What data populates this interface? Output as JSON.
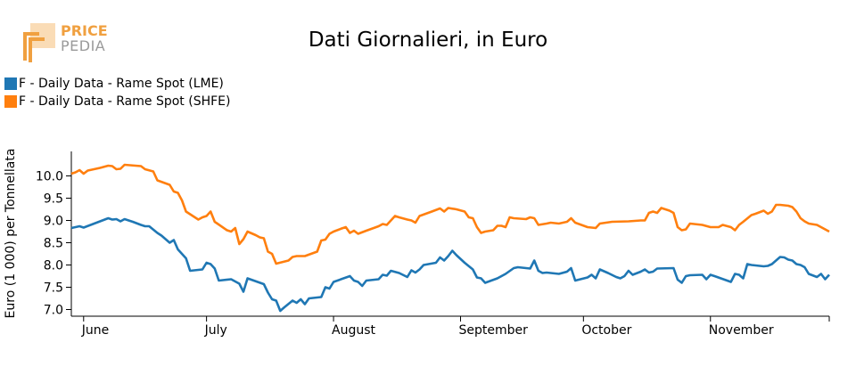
{
  "logo": {
    "line1": "PRICE",
    "line2": "PEDIA"
  },
  "chart_data": {
    "type": "line",
    "title": "Dati Giornalieri, in Euro",
    "xlabel": "",
    "ylabel": "Euro (1 000) per Tonnellata",
    "ylim": [
      6.85,
      10.55
    ],
    "yticks": [
      7.0,
      7.5,
      8.0,
      8.5,
      9.0,
      9.5,
      10.0
    ],
    "ytick_labels": [
      "7.0",
      "7.5",
      "8.0",
      "8.5",
      "9.0",
      "9.5",
      "10.0"
    ],
    "xlim": [
      "2023-05-29",
      "2023-11-30"
    ],
    "xticks": [
      "2023-06-01",
      "2023-07-01",
      "2023-08-01",
      "2023-09-01",
      "2023-10-01",
      "2023-11-01"
    ],
    "xtick_labels": [
      "June",
      "July",
      "August",
      "September",
      "October",
      "November"
    ],
    "legend_position": "top-left",
    "grid": false,
    "series": [
      {
        "name": "F - Daily Data - Rame Spot (LME)",
        "color": "#1f77b4",
        "points": [
          [
            "2023-05-29",
            8.83
          ],
          [
            "2023-05-31",
            8.87
          ],
          [
            "2023-06-01",
            8.84
          ],
          [
            "2023-06-03",
            8.91
          ],
          [
            "2023-06-05",
            8.98
          ],
          [
            "2023-06-07",
            9.05
          ],
          [
            "2023-06-08",
            9.02
          ],
          [
            "2023-06-09",
            9.03
          ],
          [
            "2023-06-10",
            8.98
          ],
          [
            "2023-06-11",
            9.03
          ],
          [
            "2023-06-13",
            8.97
          ],
          [
            "2023-06-15",
            8.9
          ],
          [
            "2023-06-16",
            8.87
          ],
          [
            "2023-06-17",
            8.87
          ],
          [
            "2023-06-19",
            8.72
          ],
          [
            "2023-06-20",
            8.66
          ],
          [
            "2023-06-21",
            8.58
          ],
          [
            "2023-06-22",
            8.5
          ],
          [
            "2023-06-23",
            8.56
          ],
          [
            "2023-06-24",
            8.35
          ],
          [
            "2023-06-26",
            8.15
          ],
          [
            "2023-06-27",
            7.87
          ],
          [
            "2023-06-30",
            7.9
          ],
          [
            "2023-07-01",
            8.05
          ],
          [
            "2023-07-02",
            8.02
          ],
          [
            "2023-07-03",
            7.92
          ],
          [
            "2023-07-04",
            7.65
          ],
          [
            "2023-07-07",
            7.68
          ],
          [
            "2023-07-09",
            7.58
          ],
          [
            "2023-07-10",
            7.4
          ],
          [
            "2023-07-11",
            7.7
          ],
          [
            "2023-07-15",
            7.57
          ],
          [
            "2023-07-16",
            7.38
          ],
          [
            "2023-07-17",
            7.23
          ],
          [
            "2023-07-18",
            7.2
          ],
          [
            "2023-07-19",
            6.97
          ],
          [
            "2023-07-20",
            7.05
          ],
          [
            "2023-07-22",
            7.2
          ],
          [
            "2023-07-23",
            7.15
          ],
          [
            "2023-07-24",
            7.23
          ],
          [
            "2023-07-25",
            7.12
          ],
          [
            "2023-07-26",
            7.25
          ],
          [
            "2023-07-29",
            7.28
          ],
          [
            "2023-07-30",
            7.5
          ],
          [
            "2023-07-31",
            7.47
          ],
          [
            "2023-08-01",
            7.62
          ],
          [
            "2023-08-05",
            7.75
          ],
          [
            "2023-08-06",
            7.65
          ],
          [
            "2023-08-07",
            7.62
          ],
          [
            "2023-08-08",
            7.53
          ],
          [
            "2023-08-09",
            7.65
          ],
          [
            "2023-08-12",
            7.68
          ],
          [
            "2023-08-13",
            7.78
          ],
          [
            "2023-08-14",
            7.76
          ],
          [
            "2023-08-15",
            7.87
          ],
          [
            "2023-08-17",
            7.82
          ],
          [
            "2023-08-19",
            7.73
          ],
          [
            "2023-08-20",
            7.88
          ],
          [
            "2023-08-21",
            7.83
          ],
          [
            "2023-08-22",
            7.9
          ],
          [
            "2023-08-23",
            8.0
          ],
          [
            "2023-08-26",
            8.05
          ],
          [
            "2023-08-27",
            8.17
          ],
          [
            "2023-08-28",
            8.1
          ],
          [
            "2023-08-29",
            8.2
          ],
          [
            "2023-08-30",
            8.32
          ],
          [
            "2023-08-31",
            8.22
          ],
          [
            "2023-09-02",
            8.05
          ],
          [
            "2023-09-04",
            7.9
          ],
          [
            "2023-09-05",
            7.72
          ],
          [
            "2023-09-06",
            7.7
          ],
          [
            "2023-09-07",
            7.6
          ],
          [
            "2023-09-10",
            7.7
          ],
          [
            "2023-09-12",
            7.8
          ],
          [
            "2023-09-14",
            7.93
          ],
          [
            "2023-09-15",
            7.95
          ],
          [
            "2023-09-18",
            7.92
          ],
          [
            "2023-09-19",
            8.1
          ],
          [
            "2023-09-20",
            7.87
          ],
          [
            "2023-09-21",
            7.82
          ],
          [
            "2023-09-22",
            7.83
          ],
          [
            "2023-09-25",
            7.8
          ],
          [
            "2023-09-27",
            7.85
          ],
          [
            "2023-09-28",
            7.93
          ],
          [
            "2023-09-29",
            7.65
          ],
          [
            "2023-10-02",
            7.72
          ],
          [
            "2023-10-03",
            7.78
          ],
          [
            "2023-10-04",
            7.7
          ],
          [
            "2023-10-05",
            7.9
          ],
          [
            "2023-10-07",
            7.82
          ],
          [
            "2023-10-09",
            7.73
          ],
          [
            "2023-10-10",
            7.7
          ],
          [
            "2023-10-11",
            7.75
          ],
          [
            "2023-10-12",
            7.87
          ],
          [
            "2023-10-13",
            7.78
          ],
          [
            "2023-10-15",
            7.85
          ],
          [
            "2023-10-16",
            7.9
          ],
          [
            "2023-10-17",
            7.83
          ],
          [
            "2023-10-18",
            7.85
          ],
          [
            "2023-10-19",
            7.92
          ],
          [
            "2023-10-23",
            7.93
          ],
          [
            "2023-10-24",
            7.67
          ],
          [
            "2023-10-25",
            7.6
          ],
          [
            "2023-10-26",
            7.75
          ],
          [
            "2023-10-27",
            7.77
          ],
          [
            "2023-10-30",
            7.78
          ],
          [
            "2023-10-31",
            7.68
          ],
          [
            "2023-11-01",
            7.78
          ],
          [
            "2023-11-02",
            7.75
          ],
          [
            "2023-11-06",
            7.62
          ],
          [
            "2023-11-07",
            7.8
          ],
          [
            "2023-11-08",
            7.78
          ],
          [
            "2023-11-09",
            7.7
          ],
          [
            "2023-11-10",
            8.02
          ],
          [
            "2023-11-11",
            8.0
          ],
          [
            "2023-11-14",
            7.97
          ],
          [
            "2023-11-15",
            7.98
          ],
          [
            "2023-11-16",
            8.02
          ],
          [
            "2023-11-18",
            8.18
          ],
          [
            "2023-11-19",
            8.17
          ],
          [
            "2023-11-20",
            8.12
          ],
          [
            "2023-11-21",
            8.1
          ],
          [
            "2023-11-22",
            8.02
          ],
          [
            "2023-11-23",
            8.0
          ],
          [
            "2023-11-24",
            7.95
          ],
          [
            "2023-11-25",
            7.8
          ],
          [
            "2023-11-27",
            7.73
          ],
          [
            "2023-11-28",
            7.8
          ],
          [
            "2023-11-29",
            7.68
          ],
          [
            "2023-11-30",
            7.78
          ]
        ]
      },
      {
        "name": "F - Daily Data - Rame Spot (SHFE)",
        "color": "#ff7f0e",
        "points": [
          [
            "2023-05-29",
            10.05
          ],
          [
            "2023-05-30",
            10.08
          ],
          [
            "2023-05-31",
            10.13
          ],
          [
            "2023-06-01",
            10.05
          ],
          [
            "2023-06-02",
            10.12
          ],
          [
            "2023-06-05",
            10.18
          ],
          [
            "2023-06-07",
            10.23
          ],
          [
            "2023-06-08",
            10.22
          ],
          [
            "2023-06-09",
            10.15
          ],
          [
            "2023-06-10",
            10.16
          ],
          [
            "2023-06-11",
            10.25
          ],
          [
            "2023-06-15",
            10.22
          ],
          [
            "2023-06-16",
            10.15
          ],
          [
            "2023-06-18",
            10.1
          ],
          [
            "2023-06-19",
            9.9
          ],
          [
            "2023-06-22",
            9.8
          ],
          [
            "2023-06-23",
            9.65
          ],
          [
            "2023-06-24",
            9.62
          ],
          [
            "2023-06-25",
            9.45
          ],
          [
            "2023-06-26",
            9.2
          ],
          [
            "2023-06-29",
            9.02
          ],
          [
            "2023-06-30",
            9.07
          ],
          [
            "2023-07-01",
            9.1
          ],
          [
            "2023-07-02",
            9.2
          ],
          [
            "2023-07-03",
            8.97
          ],
          [
            "2023-07-06",
            8.78
          ],
          [
            "2023-07-07",
            8.75
          ],
          [
            "2023-07-08",
            8.83
          ],
          [
            "2023-07-09",
            8.47
          ],
          [
            "2023-07-10",
            8.58
          ],
          [
            "2023-07-11",
            8.75
          ],
          [
            "2023-07-13",
            8.67
          ],
          [
            "2023-07-14",
            8.62
          ],
          [
            "2023-07-15",
            8.6
          ],
          [
            "2023-07-16",
            8.3
          ],
          [
            "2023-07-17",
            8.25
          ],
          [
            "2023-07-18",
            8.03
          ],
          [
            "2023-07-21",
            8.1
          ],
          [
            "2023-07-22",
            8.18
          ],
          [
            "2023-07-23",
            8.2
          ],
          [
            "2023-07-25",
            8.2
          ],
          [
            "2023-07-28",
            8.3
          ],
          [
            "2023-07-29",
            8.55
          ],
          [
            "2023-07-30",
            8.57
          ],
          [
            "2023-07-31",
            8.7
          ],
          [
            "2023-08-01",
            8.75
          ],
          [
            "2023-08-03",
            8.82
          ],
          [
            "2023-08-04",
            8.85
          ],
          [
            "2023-08-05",
            8.72
          ],
          [
            "2023-08-06",
            8.77
          ],
          [
            "2023-08-07",
            8.7
          ],
          [
            "2023-08-09",
            8.77
          ],
          [
            "2023-08-12",
            8.87
          ],
          [
            "2023-08-13",
            8.92
          ],
          [
            "2023-08-14",
            8.9
          ],
          [
            "2023-08-16",
            9.1
          ],
          [
            "2023-08-17",
            9.07
          ],
          [
            "2023-08-19",
            9.02
          ],
          [
            "2023-08-20",
            9.0
          ],
          [
            "2023-08-21",
            8.95
          ],
          [
            "2023-08-22",
            9.1
          ],
          [
            "2023-08-25",
            9.2
          ],
          [
            "2023-08-27",
            9.27
          ],
          [
            "2023-08-28",
            9.2
          ],
          [
            "2023-08-29",
            9.28
          ],
          [
            "2023-08-31",
            9.25
          ],
          [
            "2023-09-02",
            9.2
          ],
          [
            "2023-09-03",
            9.07
          ],
          [
            "2023-09-04",
            9.05
          ],
          [
            "2023-09-05",
            8.85
          ],
          [
            "2023-09-06",
            8.72
          ],
          [
            "2023-09-07",
            8.75
          ],
          [
            "2023-09-09",
            8.78
          ],
          [
            "2023-09-10",
            8.88
          ],
          [
            "2023-09-11",
            8.88
          ],
          [
            "2023-09-12",
            8.85
          ],
          [
            "2023-09-13",
            9.07
          ],
          [
            "2023-09-14",
            9.05
          ],
          [
            "2023-09-17",
            9.03
          ],
          [
            "2023-09-18",
            9.07
          ],
          [
            "2023-09-19",
            9.05
          ],
          [
            "2023-09-20",
            8.9
          ],
          [
            "2023-09-22",
            8.93
          ],
          [
            "2023-09-23",
            8.95
          ],
          [
            "2023-09-25",
            8.93
          ],
          [
            "2023-09-27",
            8.97
          ],
          [
            "2023-09-28",
            9.05
          ],
          [
            "2023-09-29",
            8.95
          ],
          [
            "2023-10-02",
            8.85
          ],
          [
            "2023-10-04",
            8.83
          ],
          [
            "2023-10-05",
            8.93
          ],
          [
            "2023-10-08",
            8.97
          ],
          [
            "2023-10-12",
            8.98
          ],
          [
            "2023-10-15",
            9.0
          ],
          [
            "2023-10-16",
            9.0
          ],
          [
            "2023-10-17",
            9.17
          ],
          [
            "2023-10-18",
            9.2
          ],
          [
            "2023-10-19",
            9.17
          ],
          [
            "2023-10-20",
            9.28
          ],
          [
            "2023-10-21",
            9.25
          ],
          [
            "2023-10-22",
            9.22
          ],
          [
            "2023-10-23",
            9.17
          ],
          [
            "2023-10-24",
            8.85
          ],
          [
            "2023-10-25",
            8.78
          ],
          [
            "2023-10-26",
            8.8
          ],
          [
            "2023-10-27",
            8.93
          ],
          [
            "2023-10-30",
            8.9
          ],
          [
            "2023-11-01",
            8.85
          ],
          [
            "2023-11-03",
            8.85
          ],
          [
            "2023-11-04",
            8.9
          ],
          [
            "2023-11-06",
            8.85
          ],
          [
            "2023-11-07",
            8.78
          ],
          [
            "2023-11-08",
            8.9
          ],
          [
            "2023-11-09",
            8.97
          ],
          [
            "2023-11-11",
            9.12
          ],
          [
            "2023-11-12",
            9.15
          ],
          [
            "2023-11-14",
            9.22
          ],
          [
            "2023-11-15",
            9.15
          ],
          [
            "2023-11-16",
            9.2
          ],
          [
            "2023-11-17",
            9.35
          ],
          [
            "2023-11-18",
            9.35
          ],
          [
            "2023-11-20",
            9.33
          ],
          [
            "2023-11-21",
            9.3
          ],
          [
            "2023-11-22",
            9.2
          ],
          [
            "2023-11-23",
            9.05
          ],
          [
            "2023-11-24",
            8.98
          ],
          [
            "2023-11-25",
            8.93
          ],
          [
            "2023-11-27",
            8.9
          ],
          [
            "2023-11-28",
            8.85
          ],
          [
            "2023-11-29",
            8.8
          ],
          [
            "2023-11-30",
            8.75
          ]
        ]
      }
    ]
  }
}
